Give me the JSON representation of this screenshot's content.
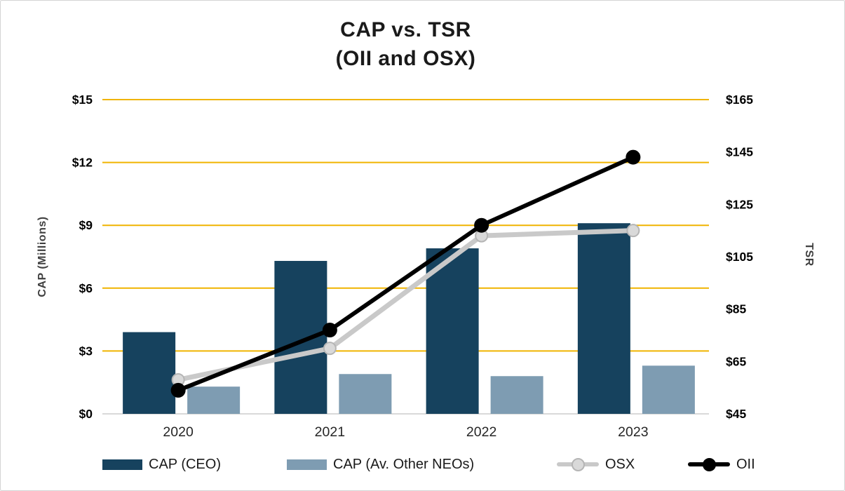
{
  "chart_data": {
    "type": "combo-bar-line",
    "title_line1": "CAP vs. TSR",
    "title_line2": "(OII and OSX)",
    "categories": [
      "2020",
      "2021",
      "2022",
      "2023"
    ],
    "left_axis": {
      "label": "CAP (Millions)",
      "min": 0,
      "max": 15,
      "step": 3,
      "ticks": [
        "$0",
        "$3",
        "$6",
        "$9",
        "$12",
        "$15"
      ]
    },
    "right_axis": {
      "label": "TSR",
      "min": 45,
      "max": 165,
      "step": 20,
      "ticks": [
        "$45",
        "$65",
        "$85",
        "$105",
        "$125",
        "$145",
        "$165"
      ]
    },
    "bar_series": [
      {
        "name": "CAP (CEO)",
        "axis": "left",
        "color": "#16425e",
        "values": [
          3.9,
          7.3,
          7.9,
          9.1
        ]
      },
      {
        "name": "CAP (Av. Other NEOs)",
        "axis": "left",
        "color": "#7e9cb2",
        "values": [
          1.3,
          1.9,
          1.8,
          2.3
        ]
      }
    ],
    "line_series": [
      {
        "name": "OSX",
        "axis": "right",
        "color": "#c9c9c9",
        "marker_fill": "#d9d9d9",
        "marker_stroke": "#b5b5b5",
        "values": [
          58,
          70,
          113,
          115
        ]
      },
      {
        "name": "OII",
        "axis": "right",
        "color": "#000000",
        "marker_fill": "#000000",
        "marker_stroke": "#000000",
        "values": [
          54,
          77,
          117,
          143
        ]
      }
    ],
    "gridline_color": "#f0b400",
    "baseline_color": "#d9d9d9",
    "legend_position": "bottom",
    "grid": "horizontal"
  }
}
